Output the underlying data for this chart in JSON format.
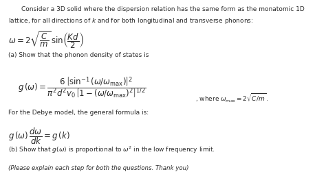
{
  "bg_color": "#ffffff",
  "text_color": "#2a2a2a",
  "figsize": [
    4.74,
    2.54
  ],
  "dpi": 100,
  "header1": "Consider a 3D solid where the dispersion relation has the same form as the monatomic 1D",
  "header2": "lattice, for all directions of $k$ and for both longitudinal and transverse phonons:",
  "formula_omega": "$\\omega = 2\\sqrt{\\dfrac{C}{m}}\\,\\sin\\!\\left(\\dfrac{Kd}{2}\\right)$",
  "label_a": "(a) Show that the phonon density of states is",
  "formula_g": "$g\\,(\\omega) = \\dfrac{6\\,\\left[\\sin^{-1}(\\omega/\\omega_{\\mathrm{max}})\\right]^{2}}{\\pi^{2}d^{2}v_{0}\\,\\left[1-(\\omega/\\omega_{\\mathrm{max}})^{2}\\right]^{1/2}}$",
  "where_text": ", where $\\omega_{\\mathrm{max}} = 2\\sqrt{C/m}\\,.$",
  "debye_label": "For the Debye model, the general formula is:",
  "formula_debye": "$g\\,(\\omega)\\,\\dfrac{d\\omega}{dk} = g\\,(k)$",
  "label_b": "(b) Show that $g(\\omega)$ is proportional to $\\omega^{2}$ in the low frequency limit.",
  "footnote": "(Please explain each step for both the questions. Thank you)"
}
